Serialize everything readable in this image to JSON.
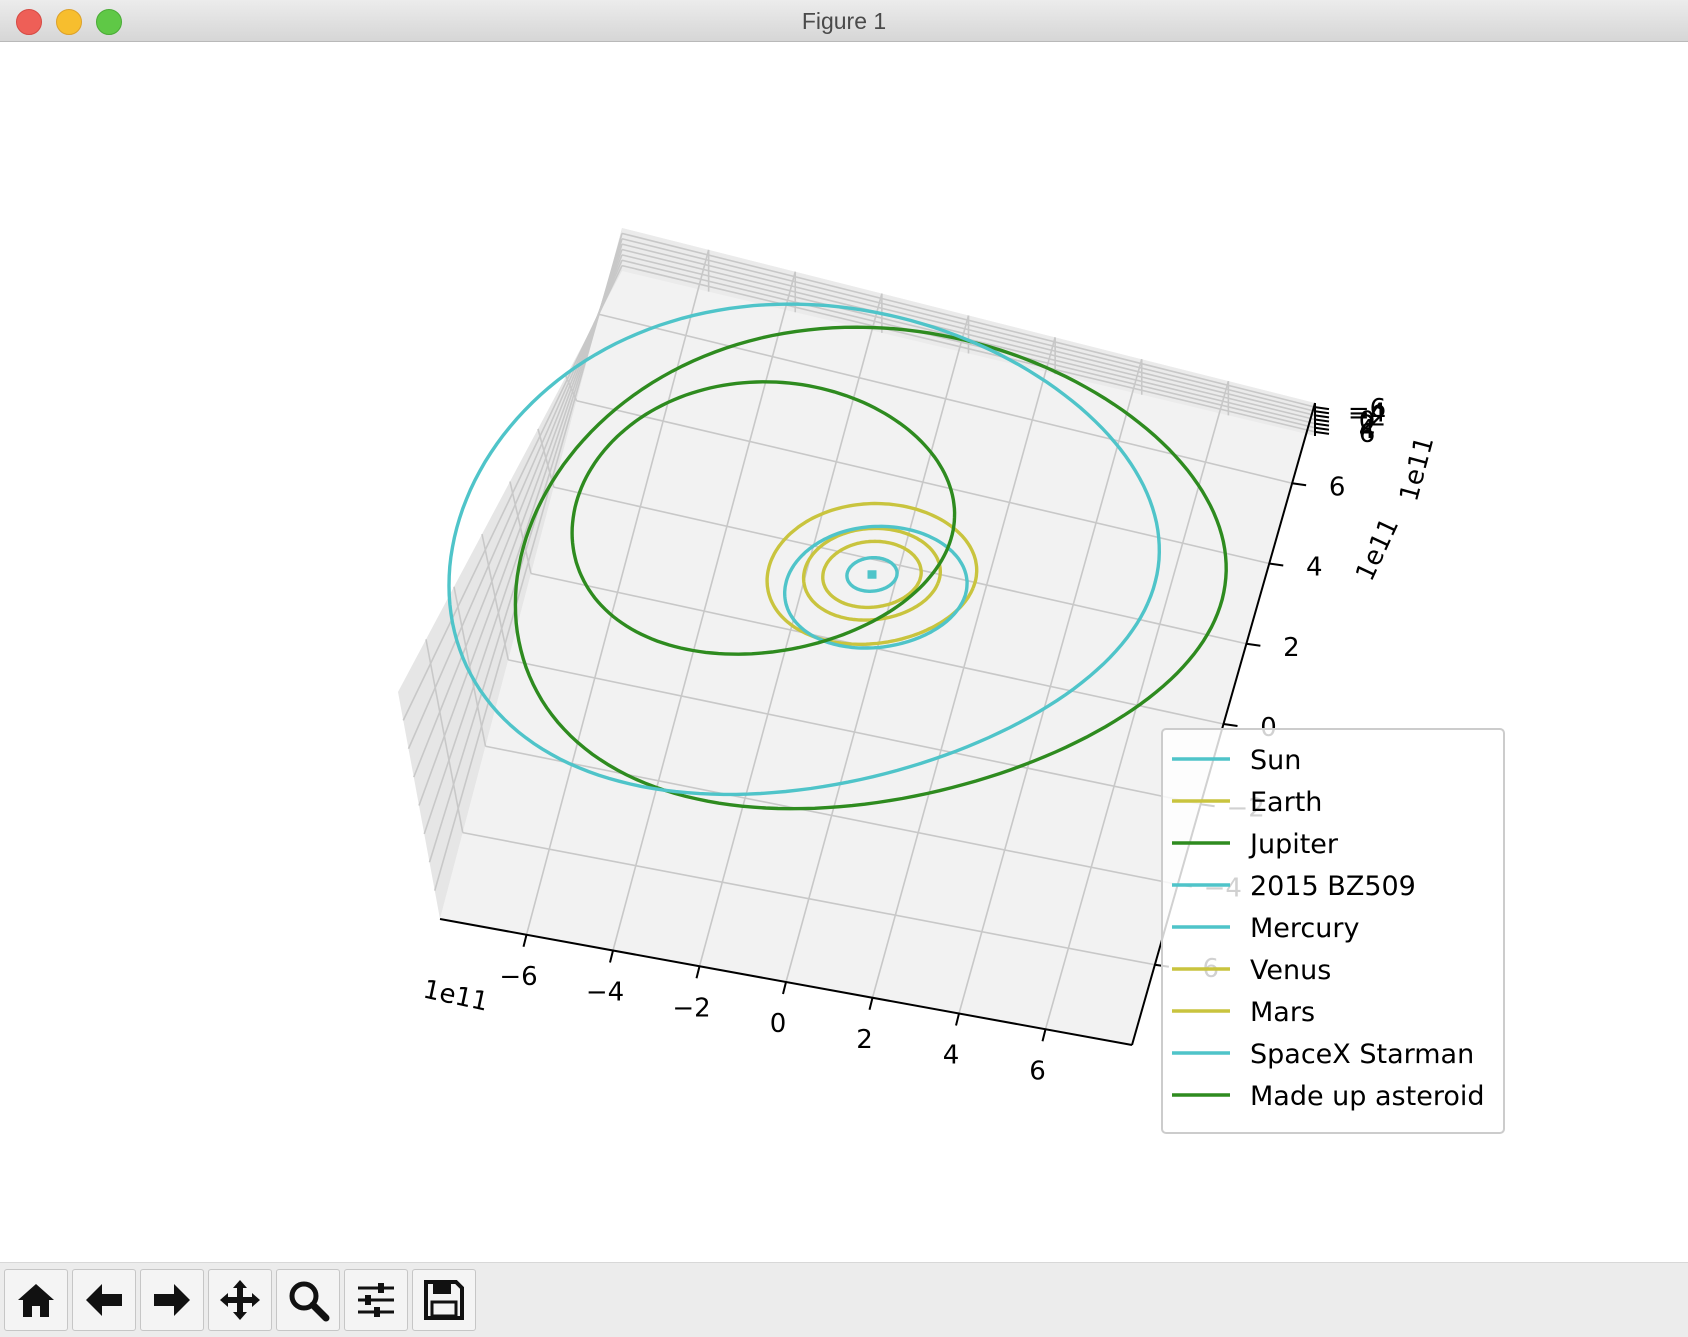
{
  "window": {
    "title": "Figure 1"
  },
  "toolbar": {
    "buttons": [
      {
        "icon": "home-icon"
      },
      {
        "icon": "back-arrow-icon"
      },
      {
        "icon": "forward-arrow-icon"
      },
      {
        "icon": "pan-icon"
      },
      {
        "icon": "zoom-icon"
      },
      {
        "icon": "sliders-icon"
      },
      {
        "icon": "save-icon"
      }
    ]
  },
  "chart_data": {
    "type": "line",
    "projection": "3d",
    "grid": true,
    "legend_position": "right",
    "axes": {
      "x": {
        "ticks": [
          -6,
          -4,
          -2,
          0,
          2,
          4,
          6
        ],
        "offset_label": "1e11",
        "lim": [
          -8,
          8
        ]
      },
      "y": {
        "ticks": [
          -6,
          -4,
          -2,
          0,
          2,
          4,
          6
        ],
        "offset_label": "1e11",
        "lim": [
          -8,
          8
        ]
      },
      "z": {
        "ticks": [
          -6,
          -4,
          -2,
          0,
          2,
          4,
          6
        ],
        "offset_label": "1e11",
        "lim": [
          -8,
          8
        ]
      }
    },
    "series": [
      {
        "name": "Sun",
        "color": "#4fc4c9",
        "semi_major": 0.01,
        "semi_minor": 0.01,
        "center": [
          0,
          0
        ]
      },
      {
        "name": "Earth",
        "color": "#c9c43e",
        "semi_major": 1.5,
        "semi_minor": 1.5,
        "center": [
          0,
          0
        ]
      },
      {
        "name": "Jupiter",
        "color": "#2e8b1f",
        "semi_major": 7.8,
        "semi_minor": 7.8,
        "center": [
          0,
          0
        ]
      },
      {
        "name": "2015 BZ509",
        "color": "#4fc4c9",
        "semi_major": 7.8,
        "semi_minor": 7.7,
        "center": [
          -1.6,
          0.3
        ]
      },
      {
        "name": "Mercury",
        "color": "#4fc4c9",
        "semi_major": 0.55,
        "semi_minor": 0.55,
        "center": [
          0,
          0
        ]
      },
      {
        "name": "Venus",
        "color": "#c9c43e",
        "semi_major": 1.08,
        "semi_minor": 1.08,
        "center": [
          0,
          0
        ]
      },
      {
        "name": "Mars",
        "color": "#c9c43e",
        "semi_major": 2.3,
        "semi_minor": 2.3,
        "center": [
          0,
          0
        ]
      },
      {
        "name": "SpaceX Starman",
        "color": "#4fc4c9",
        "semi_major": 2.0,
        "semi_minor": 2.0,
        "center": [
          0.2,
          -0.4
        ]
      },
      {
        "name": "Made up asteroid",
        "color": "#2e8b1f",
        "semi_major": 4.2,
        "semi_minor": 4.2,
        "center": [
          -2.8,
          1.2
        ]
      }
    ]
  }
}
